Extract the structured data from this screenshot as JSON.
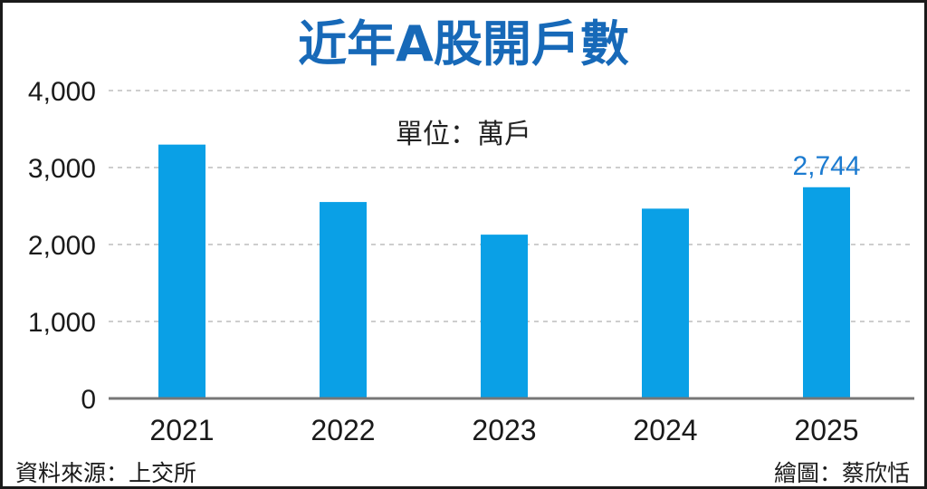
{
  "header": {
    "title": "近年A股開戶數",
    "unit_label": "單位：萬戶"
  },
  "footer": {
    "source": "資料來源：上交所",
    "credit": "繪圖：蔡欣恬"
  },
  "chart_data": {
    "type": "bar",
    "title": "近年A股開戶數",
    "categories": [
      "2021",
      "2022",
      "2023",
      "2024",
      "2025"
    ],
    "values": [
      3298,
      2552,
      2128,
      2466,
      2744
    ],
    "data_labels": [
      null,
      null,
      null,
      null,
      "2,744"
    ],
    "ylim": [
      0,
      4000
    ],
    "yticks": [
      0,
      1000,
      2000,
      3000,
      4000
    ],
    "ytick_labels": [
      "0",
      "1,000",
      "2,000",
      "3,000",
      "4,000"
    ],
    "grid": true,
    "colors": {
      "bar": "#0aa0e6",
      "title": "#1769b8",
      "data_label": "#1c7bd0",
      "grid": "#bdbdbd",
      "axis": "#777777"
    }
  }
}
